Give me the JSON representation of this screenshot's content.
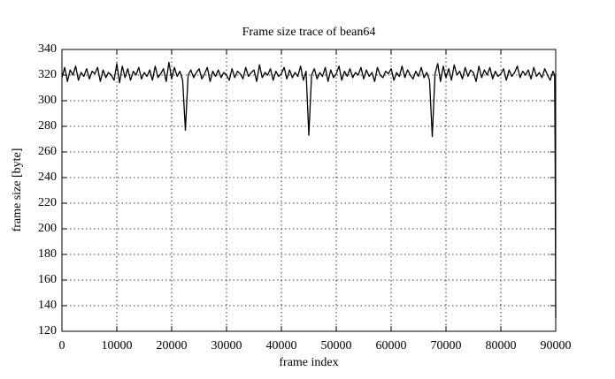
{
  "chart_data": {
    "type": "line",
    "title": "Frame size trace of bean64",
    "x_label": "frame index",
    "y_label": "frame size [byte]",
    "xlim": [
      0,
      90000
    ],
    "ylim": [
      120,
      340
    ],
    "xticks": [
      0,
      10000,
      20000,
      30000,
      40000,
      50000,
      60000,
      70000,
      80000,
      90000
    ],
    "yticks": [
      120,
      140,
      160,
      180,
      200,
      220,
      240,
      260,
      280,
      300,
      320,
      340
    ],
    "grid": true,
    "x": [
      0,
      500,
      1000,
      1500,
      2000,
      2500,
      3000,
      3500,
      4000,
      4500,
      5000,
      5500,
      6000,
      6500,
      7000,
      7500,
      8000,
      8500,
      9000,
      9500,
      10000,
      10500,
      11000,
      11500,
      12000,
      12500,
      13000,
      13500,
      14000,
      14500,
      15000,
      15500,
      16000,
      16500,
      17000,
      17500,
      18000,
      18500,
      19000,
      19500,
      20000,
      20500,
      21000,
      21500,
      22000,
      22500,
      23000,
      23500,
      24000,
      24500,
      25000,
      25500,
      26000,
      26500,
      27000,
      27500,
      28000,
      28500,
      29000,
      29500,
      30000,
      30500,
      31000,
      31500,
      32000,
      32500,
      33000,
      33500,
      34000,
      34500,
      35000,
      35500,
      36000,
      36500,
      37000,
      37500,
      38000,
      38500,
      39000,
      39500,
      40000,
      40500,
      41000,
      41500,
      42000,
      42500,
      43000,
      43500,
      44000,
      44500,
      45000,
      45500,
      46000,
      46500,
      47000,
      47500,
      48000,
      48500,
      49000,
      49500,
      50000,
      50500,
      51000,
      51500,
      52000,
      52500,
      53000,
      53500,
      54000,
      54500,
      55000,
      55500,
      56000,
      56500,
      57000,
      57500,
      58000,
      58500,
      59000,
      59500,
      60000,
      60500,
      61000,
      61500,
      62000,
      62500,
      63000,
      63500,
      64000,
      64500,
      65000,
      65500,
      66000,
      66500,
      67000,
      67500,
      68000,
      68500,
      69000,
      69500,
      70000,
      70500,
      71000,
      71500,
      72000,
      72500,
      73000,
      73500,
      74000,
      74500,
      75000,
      75500,
      76000,
      76500,
      77000,
      77500,
      78000,
      78500,
      79000,
      79500,
      80000,
      80500,
      81000,
      81500,
      82000,
      82500,
      83000,
      83500,
      84000,
      84500,
      85000,
      85500,
      86000,
      86500,
      87000,
      87500,
      88000,
      88500,
      89000,
      89500,
      89800,
      89900,
      90000
    ],
    "series": [
      {
        "color": "#000000",
        "values": [
          318,
          326,
          315,
          324,
          320,
          327,
          316,
          322,
          319,
          325,
          317,
          323,
          321,
          326,
          315,
          324,
          318,
          322,
          320,
          316,
          329,
          314,
          327,
          318,
          325,
          316,
          323,
          320,
          326,
          317,
          322,
          319,
          324,
          316,
          327,
          318,
          321,
          325,
          315,
          330,
          317,
          326,
          319,
          323,
          316,
          277,
          320,
          324,
          318,
          322,
          325,
          317,
          321,
          326,
          315,
          323,
          319,
          324,
          318,
          322,
          320,
          316,
          325,
          318,
          323,
          321,
          317,
          326,
          319,
          322,
          324,
          315,
          328,
          318,
          322,
          320,
          325,
          316,
          323,
          319,
          321,
          326,
          317,
          324,
          318,
          322,
          319,
          327,
          316,
          323,
          273,
          320,
          325,
          317,
          322,
          319,
          326,
          315,
          324,
          318,
          321,
          327,
          316,
          323,
          319,
          325,
          318,
          322,
          320,
          326,
          317,
          324,
          319,
          322,
          315,
          326,
          320,
          318,
          323,
          321,
          325,
          316,
          322,
          319,
          327,
          318,
          324,
          320,
          317,
          323,
          319,
          326,
          318,
          322,
          316,
          272,
          321,
          329,
          315,
          327,
          318,
          325,
          316,
          328,
          320,
          323,
          317,
          326,
          319,
          324,
          322,
          315,
          327,
          318,
          324,
          320,
          326,
          317,
          323,
          319,
          321,
          325,
          316,
          324,
          319,
          322,
          327,
          318,
          323,
          320,
          324,
          317,
          326,
          319,
          322,
          318,
          325,
          320,
          316,
          323,
          320,
          255,
          130
        ]
      }
    ]
  }
}
